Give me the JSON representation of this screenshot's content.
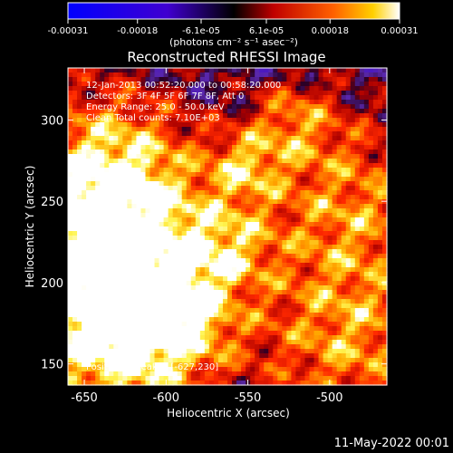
{
  "chart_data": {
    "type": "heatmap",
    "title": "Reconstructed RHESSI Image",
    "xlabel": "Heliocentric X (arcsec)",
    "ylabel": "Heliocentric Y (arcsec)",
    "xlim": [
      -660,
      -465
    ],
    "ylim": [
      137,
      332
    ],
    "x_ticks": [
      -650,
      -600,
      -550,
      -500
    ],
    "y_ticks": [
      150,
      200,
      250,
      300
    ],
    "colorbar": {
      "unit_label": "(photons cm⁻² s⁻¹ asec⁻²)",
      "range": [
        -0.00031,
        0.00031
      ],
      "tick_values": [
        -0.00031,
        -0.00018,
        -6.1e-05,
        6.1e-05,
        0.00018,
        0.00031
      ],
      "tick_labels": [
        "-0.00031",
        "-0.00018",
        "-6.1e-05",
        "6.1e-05",
        "0.00018",
        "0.00031"
      ]
    },
    "annotations": [
      "12-Jan-2013 00:52:20.000 to 00:58:20.000",
      "Detectors: 3F 4F 5F 6F 7F 8F, Att 0",
      "Energy Range: 25.0 - 50.0 keV",
      "Clean     Total counts: 7.10E+03"
    ],
    "peak_label": "Position of Peak = [-627,230]",
    "peak": {
      "x": -627,
      "y": 230
    },
    "grid": false
  },
  "footer": {
    "date": "11-May-2022 00:01"
  }
}
